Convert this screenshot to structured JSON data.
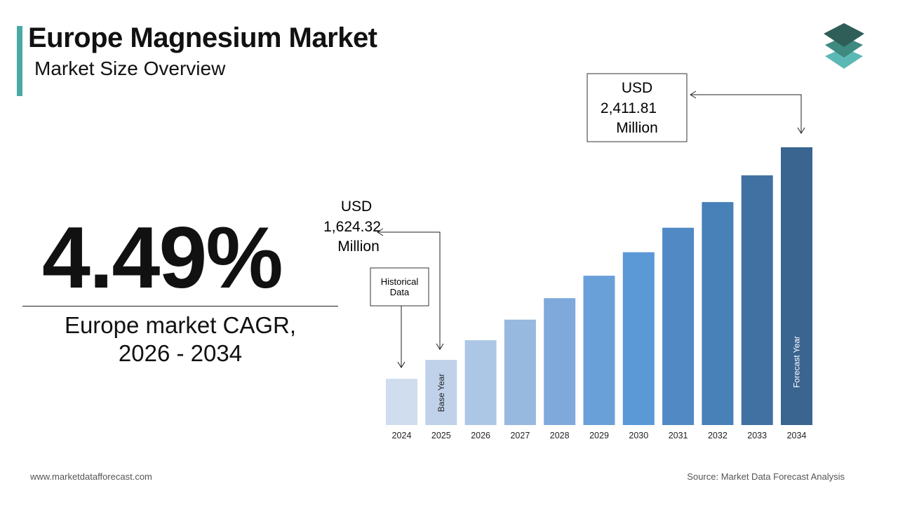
{
  "header": {
    "title": "Europe Magnesium Market",
    "subtitle": "Market Size Overview"
  },
  "cagr": {
    "value": "4.49%",
    "label_line1": "Europe market CAGR,",
    "label_line2": "2026 - 2034"
  },
  "callouts": {
    "start": {
      "line1": "USD",
      "line2": "1,624.32",
      "line3": "Million"
    },
    "end": {
      "line1": "USD",
      "line2": "2,411.81",
      "line3": "Million"
    },
    "historical": {
      "line1": "Historical",
      "line2": "Data"
    }
  },
  "footer": {
    "website": "www.marketdatafforecast.com",
    "source": "Source: Market Data Forecast Analysis"
  },
  "colors": {
    "accent": "#4aa9a4",
    "logo_top": "#2f5e58",
    "logo_mid": "#3f8a80",
    "logo_bottom": "#5bb8b5"
  },
  "chart_data": {
    "type": "bar",
    "title": "",
    "xlabel": "",
    "ylabel": "",
    "categories": [
      "2024",
      "2025",
      "2026",
      "2027",
      "2028",
      "2029",
      "2030",
      "2031",
      "2032",
      "2033",
      "2034"
    ],
    "values": [
      1554.5,
      1624.32,
      1697.2,
      1773.4,
      1853.0,
      1936.2,
      2023.1,
      2113.9,
      2208.8,
      2308.0,
      2411.81
    ],
    "bar_labels": {
      "1": "Base Year",
      "10": "Forecast Year"
    },
    "bar_colors": [
      "#d0ddef",
      "#bfd2ea",
      "#acc7e6",
      "#97b8df",
      "#7fa9db",
      "#6aa0d8",
      "#5b98d6",
      "#5089c4",
      "#4880b8",
      "#4171a3",
      "#3a6590"
    ],
    "grid": false,
    "legend": "none"
  }
}
